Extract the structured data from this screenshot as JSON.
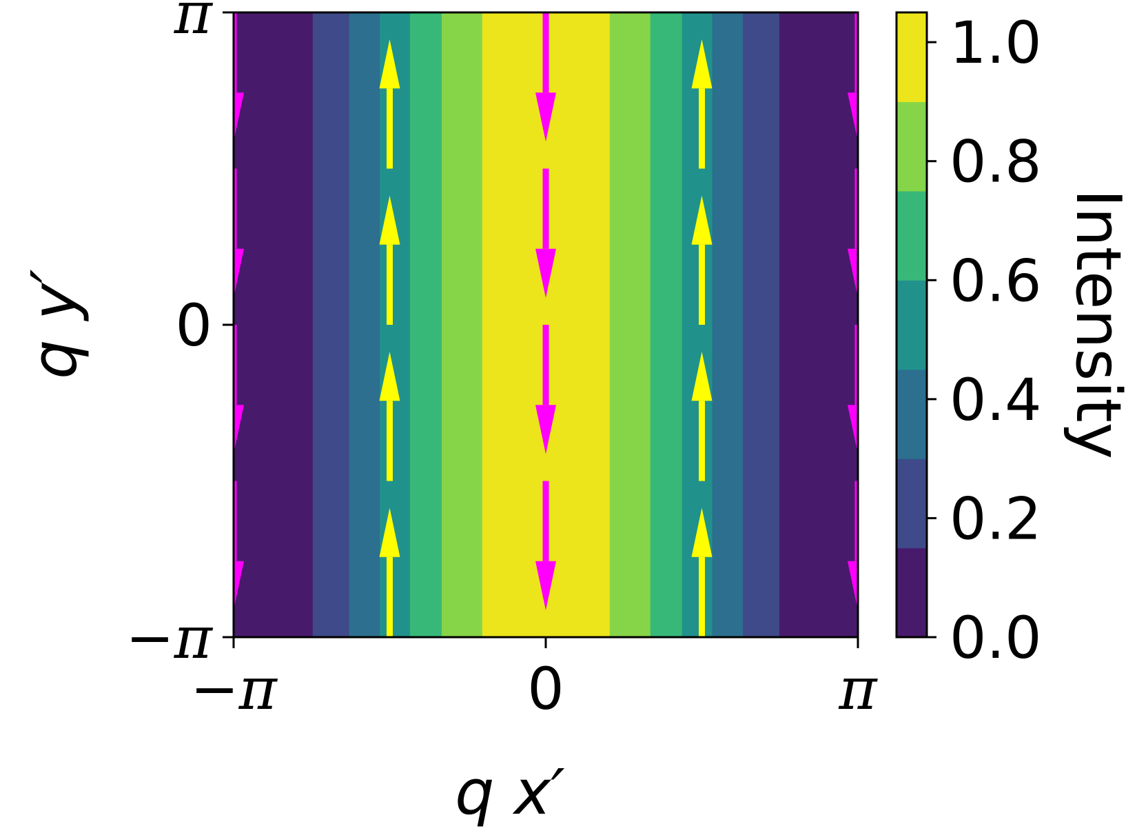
{
  "chart_data": {
    "type": "heatmap",
    "title": "",
    "xlabel": "q x′",
    "ylabel": "q y′",
    "xlim": [
      -3.14159,
      3.14159
    ],
    "ylim": [
      -3.14159,
      3.14159
    ],
    "x_ticks": [
      {
        "value": -3.14159,
        "label": "−π"
      },
      {
        "value": 0,
        "label": "0"
      },
      {
        "value": 3.14159,
        "label": "π"
      }
    ],
    "y_ticks": [
      {
        "value": -3.14159,
        "label": "−π"
      },
      {
        "value": 0,
        "label": "0"
      },
      {
        "value": 3.14159,
        "label": "π"
      }
    ],
    "grid": false,
    "intensity_function": "cos^2(x/2)",
    "contour_levels": [
      0,
      0.15,
      0.3,
      0.45,
      0.6,
      0.75,
      0.9,
      1.05
    ],
    "level_colors": [
      "#481a6c",
      "#3e4a89",
      "#2d6f8e",
      "#21918c",
      "#37b878",
      "#86d549",
      "#ece51b"
    ],
    "colorbar": {
      "label": "Intensity",
      "range": [
        0,
        1.05
      ],
      "ticks": [
        {
          "value": 0.0,
          "label": "0.0"
        },
        {
          "value": 0.2,
          "label": "0.2"
        },
        {
          "value": 0.4,
          "label": "0.4"
        },
        {
          "value": 0.6,
          "label": "0.6"
        },
        {
          "value": 0.8,
          "label": "0.8"
        },
        {
          "value": 1.0,
          "label": "1.0"
        }
      ]
    },
    "arrows": {
      "up_color": "#ffff00",
      "down_color": "#ff00ff",
      "up_x": [
        -1.5708,
        1.5708
      ],
      "down_x": [
        -3.14159,
        0,
        3.14159
      ],
      "up_y": [
        -3.14159,
        -1.5708,
        0,
        1.5708
      ],
      "down_y": [
        3.14159,
        1.5708,
        0,
        -1.5708
      ],
      "length": 1.3
    }
  }
}
